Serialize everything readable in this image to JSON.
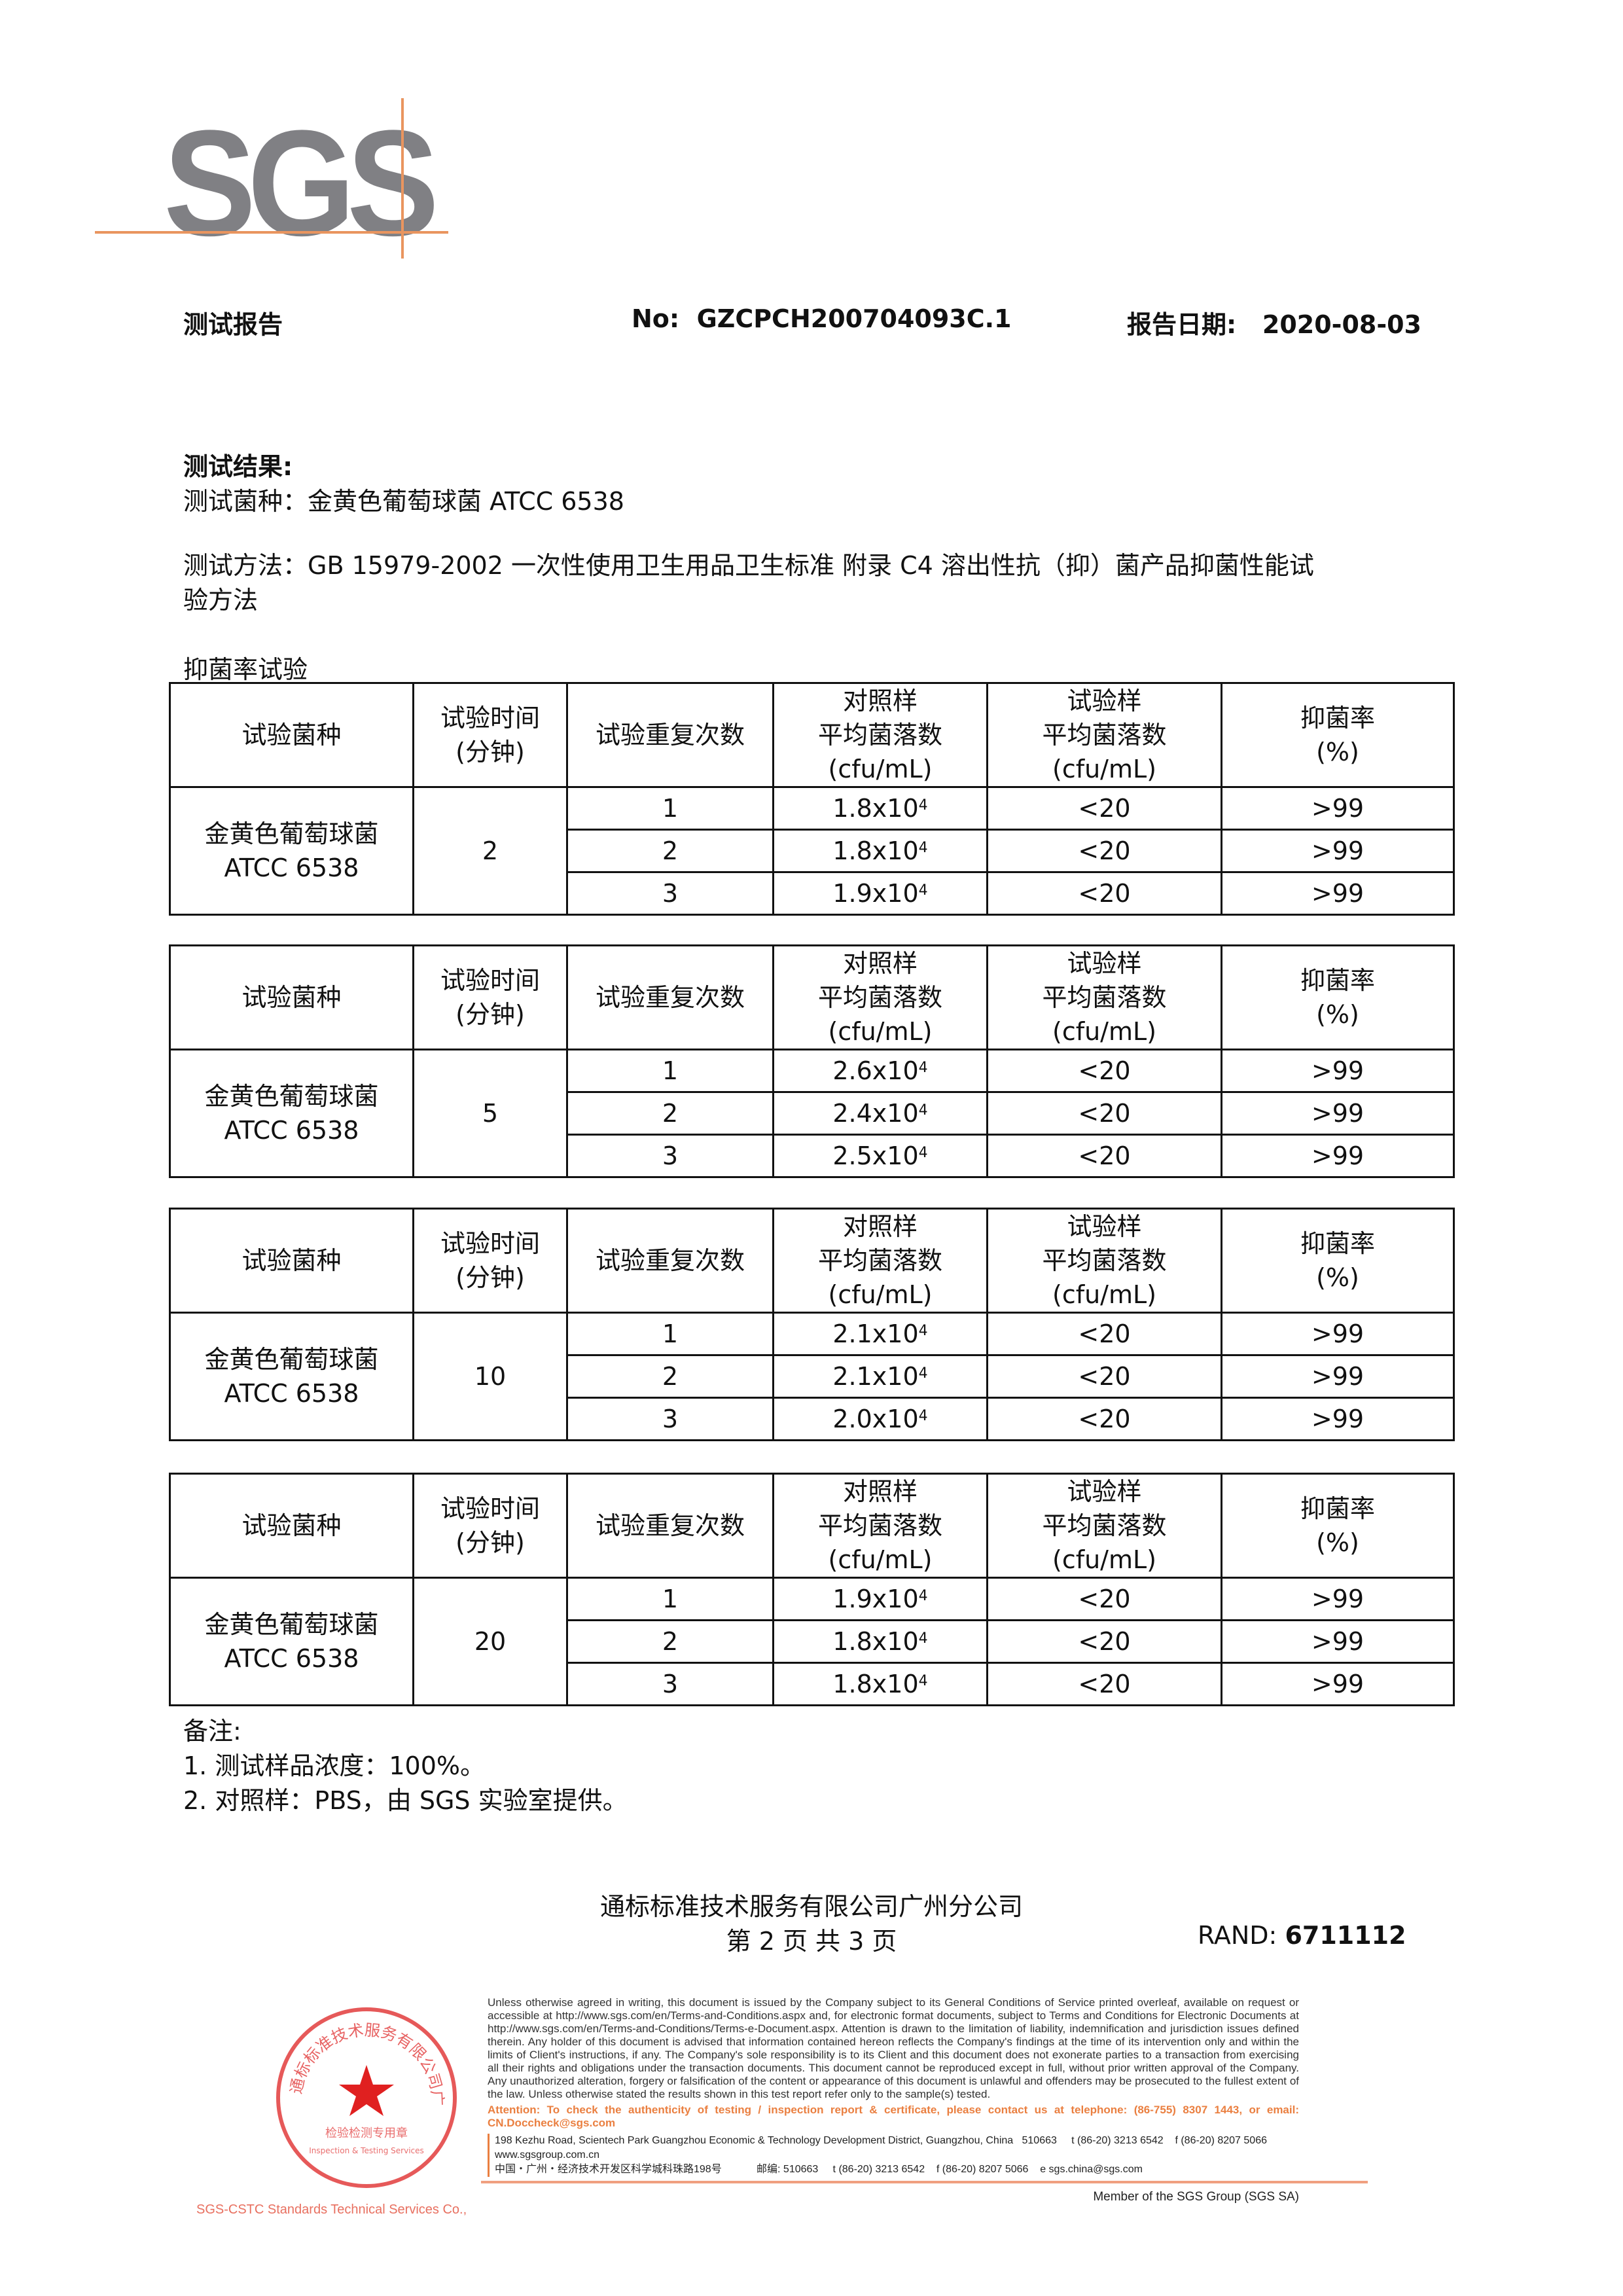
{
  "logo": {
    "text": "SGS",
    "line_color": "#e9955f",
    "text_color": "#808084"
  },
  "header": {
    "title": "测试报告",
    "no_label": "No:",
    "no_value": "GZCPCH200704093C.1",
    "date_label": "报告日期:",
    "date_value": "2020-08-03"
  },
  "results": {
    "heading": "测试结果:",
    "strain_line": "测试菌种：金黄色葡萄球菌 ATCC 6538",
    "method_line1": "测试方法：GB 15979-2002 一次性使用卫生用品卫生标准 附录 C4 溶出性抗（抑）菌产品抑菌性能试",
    "method_line2": "验方法",
    "section_label": "抑菌率试验"
  },
  "table_headers": {
    "strain": "试验菌种",
    "time": [
      "试验时间",
      "(分钟)"
    ],
    "repeat": "试验重复次数",
    "control": [
      "对照样",
      "平均菌落数",
      "(cfu/mL)"
    ],
    "sample": [
      "试验样",
      "平均菌落数",
      "(cfu/mL)"
    ],
    "rate": [
      "抑菌率",
      "(%)"
    ]
  },
  "tables": [
    {
      "strain": [
        "金黄色葡萄球菌",
        "ATCC 6538"
      ],
      "time": "2",
      "rows": [
        {
          "repeat": "1",
          "control": "1.8x10",
          "control_exp": "4",
          "sample": "<20",
          "rate": ">99"
        },
        {
          "repeat": "2",
          "control": "1.8x10",
          "control_exp": "4",
          "sample": "<20",
          "rate": ">99"
        },
        {
          "repeat": "3",
          "control": "1.9x10",
          "control_exp": "4",
          "sample": "<20",
          "rate": ">99"
        }
      ]
    },
    {
      "strain": [
        "金黄色葡萄球菌",
        "ATCC 6538"
      ],
      "time": "5",
      "rows": [
        {
          "repeat": "1",
          "control": "2.6x10",
          "control_exp": "4",
          "sample": "<20",
          "rate": ">99"
        },
        {
          "repeat": "2",
          "control": "2.4x10",
          "control_exp": "4",
          "sample": "<20",
          "rate": ">99"
        },
        {
          "repeat": "3",
          "control": "2.5x10",
          "control_exp": "4",
          "sample": "<20",
          "rate": ">99"
        }
      ]
    },
    {
      "strain": [
        "金黄色葡萄球菌",
        "ATCC 6538"
      ],
      "time": "10",
      "rows": [
        {
          "repeat": "1",
          "control": "2.1x10",
          "control_exp": "4",
          "sample": "<20",
          "rate": ">99"
        },
        {
          "repeat": "2",
          "control": "2.1x10",
          "control_exp": "4",
          "sample": "<20",
          "rate": ">99"
        },
        {
          "repeat": "3",
          "control": "2.0x10",
          "control_exp": "4",
          "sample": "<20",
          "rate": ">99"
        }
      ]
    },
    {
      "strain": [
        "金黄色葡萄球菌",
        "ATCC 6538"
      ],
      "time": "20",
      "rows": [
        {
          "repeat": "1",
          "control": "1.9x10",
          "control_exp": "4",
          "sample": "<20",
          "rate": ">99"
        },
        {
          "repeat": "2",
          "control": "1.8x10",
          "control_exp": "4",
          "sample": "<20",
          "rate": ">99"
        },
        {
          "repeat": "3",
          "control": "1.8x10",
          "control_exp": "4",
          "sample": "<20",
          "rate": ">99"
        }
      ]
    }
  ],
  "notes": {
    "label": "备注:",
    "items": [
      "1.   测试样品浓度：100%。",
      "2.   对照样：PBS，由 SGS 实验室提供。"
    ]
  },
  "footer": {
    "company": "通标标准技术服务有限公司广州分公司",
    "page": "第 2 页 共 3 页",
    "rand_label": "RAND:",
    "rand_value": "6711112",
    "disclaimer": "Unless otherwise agreed in writing, this document is issued by the Company subject to its General Conditions of Service printed overleaf, available on request or accessible at http://www.sgs.com/en/Terms-and-Conditions.aspx and, for electronic format documents, subject to Terms and Conditions for Electronic Documents at http://www.sgs.com/en/Terms-and-Conditions/Terms-e-Document.aspx. Attention is drawn to the limitation of liability, indemnification and jurisdiction issues defined therein. Any holder of this document is advised that information contained hereon reflects the Company's findings at the time of its intervention only and within the limits of Client's instructions, if any. The Company's sole responsibility is to its Client and this document does not exonerate parties to a transaction from exercising all their rights and obligations under the transaction documents. This document cannot be reproduced except in full, without prior written approval of the Company. Any unauthorized alteration, forgery or falsification of the content or appearance of this document is unlawful and offenders may be prosecuted to the fullest extent of the law. Unless otherwise stated the results shown in this test report refer only to the sample(s) tested.",
    "attention": "Attention: To check the authenticity of testing / inspection report & certificate, please contact us at telephone: (86-755) 8307 1443, or email: CN.Doccheck@sgs.com",
    "address_en": "198 Kezhu Road, Scientech Park Guangzhou Economic & Technology Development District, Guangzhou, China   510663     t (86-20) 3213 6542    f (86-20) 8207 5066    www.sgsgroup.com.cn",
    "address_cn": "中国・广州・经济技术开发区科学城科珠路198号            邮编: 510663     t (86-20) 3213 6542    f (86-20) 8207 5066    e sgs.china@sgs.com",
    "member": "Member of the SGS Group (SGS SA)",
    "accent": "#ea7f40"
  },
  "stamp": {
    "ring_text": "通标标准技术服务有限公司广州分公司",
    "center_text": "检验检测专用章",
    "en_text": "Inspection & Testing Services",
    "bottom_text": "SGS-CSTC Standards Technical Services Co., Ltd. Guangzhou Branch",
    "color": "#e03030"
  }
}
